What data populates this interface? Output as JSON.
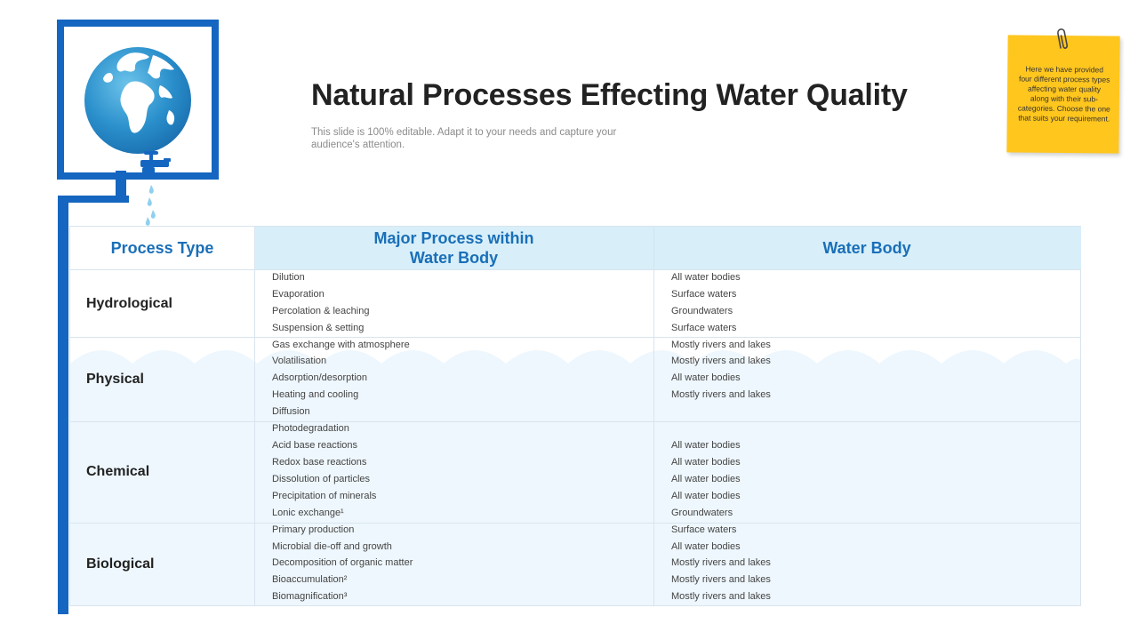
{
  "header": {
    "title": "Natural Processes Effecting Water Quality",
    "subtitle": "This slide is 100% editable. Adapt it to your needs and capture your audience's attention."
  },
  "note": {
    "text": "Here we have provided four different process types affecting water quality along with their sub-categories. Choose the one that suits your requirement."
  },
  "table": {
    "columns": [
      "Process Type",
      "Major Process within Water Body",
      "Water Body"
    ],
    "groups": [
      {
        "type": "Hydrological",
        "rows": [
          {
            "process": "Dilution",
            "body": "All water bodies"
          },
          {
            "process": "Evaporation",
            "body": "Surface waters"
          },
          {
            "process": "Percolation & leaching",
            "body": "Groundwaters"
          },
          {
            "process": "Suspension & setting",
            "body": "Surface waters"
          }
        ]
      },
      {
        "type": "Physical",
        "rows": [
          {
            "process": "Gas exchange with atmosphere",
            "body": "Mostly rivers and lakes"
          },
          {
            "process": "Volatilisation",
            "body": "Mostly rivers and lakes"
          },
          {
            "process": "Adsorption/desorption",
            "body": "All water bodies"
          },
          {
            "process": "Heating and cooling",
            "body": "Mostly rivers and lakes"
          },
          {
            "process": "Diffusion",
            "body": ""
          }
        ]
      },
      {
        "type": "Chemical",
        "rows": [
          {
            "process": "Photodegradation",
            "body": ""
          },
          {
            "process": "Acid base reactions",
            "body": "All water bodies"
          },
          {
            "process": "Redox base reactions",
            "body": "All water bodies"
          },
          {
            "process": "Dissolution of particles",
            "body": "All water bodies"
          },
          {
            "process": "Precipitation of minerals",
            "body": "All water bodies"
          },
          {
            "process": "Lonic exchange¹",
            "body": "Groundwaters"
          }
        ]
      },
      {
        "type": "Biological",
        "rows": [
          {
            "process": "Primary production",
            "body": "Surface waters"
          },
          {
            "process": "Microbial die-off and growth",
            "body": "All water bodies"
          },
          {
            "process": "Decomposition of organic matter",
            "body": "Mostly rivers and lakes"
          },
          {
            "process": "Bioaccumulation²",
            "body": "Mostly rivers and lakes"
          },
          {
            "process": "Biomagnification³",
            "body": "Mostly rivers and lakes"
          }
        ]
      }
    ]
  },
  "colors": {
    "accent": "#1566c0",
    "header_bg": "#d8eff9",
    "header_text": "#1a6fb8",
    "note": "#ffc61e",
    "wave": "#eef7fd"
  },
  "icons": [
    "globe-icon",
    "water-tap-icon",
    "water-drops-icon",
    "paperclip-icon"
  ]
}
